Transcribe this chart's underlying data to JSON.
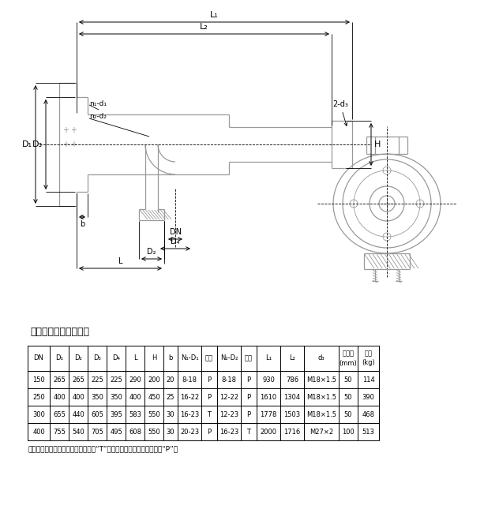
{
  "title_section": "主要尺寸、参数及质量",
  "table_headers_row1": [
    "DN",
    "D₁",
    "D₂",
    "D₃",
    "D₄",
    "L",
    "H",
    "b",
    "N₁-D₁",
    "孔位",
    "N₂-D₂",
    "孔位",
    "L₁",
    "L₂",
    "d₃",
    "油口径",
    "质量"
  ],
  "table_headers_row2": [
    "",
    "",
    "",
    "",
    "",
    "",
    "",
    "",
    "",
    "",
    "",
    "",
    "",
    "",
    "",
    "(mm)",
    "(kg)"
  ],
  "table_rows": [
    [
      "150",
      "265",
      "265",
      "225",
      "225",
      "290",
      "200",
      "20",
      "8-18",
      "P",
      "8-18",
      "P",
      "930",
      "786",
      "M18×1.5",
      "50",
      "114"
    ],
    [
      "250",
      "400",
      "400",
      "350",
      "350",
      "400",
      "450",
      "25",
      "16-22",
      "P",
      "12-22",
      "P",
      "1610",
      "1304",
      "M18×1.5",
      "50",
      "390"
    ],
    [
      "300",
      "655",
      "440",
      "605",
      "395",
      "583",
      "550",
      "30",
      "16-23",
      "T",
      "12-23",
      "P",
      "1778",
      "1503",
      "M18×1.5",
      "50",
      "468"
    ],
    [
      "400",
      "755",
      "540",
      "705",
      "495",
      "608",
      "550",
      "30",
      "20-23",
      "P",
      "16-23",
      "T",
      "2000",
      "1716",
      "M27×2",
      "100",
      "513"
    ]
  ],
  "note": "注：孔位一栏钒孔过垂直中心线标注“T”，钒孔对称于中心线分布标注“P”。",
  "bg_color": "#ffffff",
  "lc": "#000000",
  "gc": "#999999"
}
